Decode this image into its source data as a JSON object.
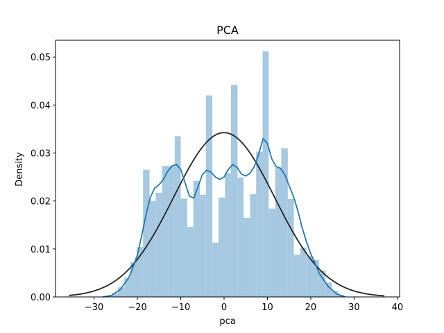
{
  "chart_data": {
    "type": "bar",
    "title": "PCA",
    "xlabel": "pca",
    "ylabel": "Density",
    "xlim": [
      -38.9,
      40.5
    ],
    "ylim": [
      0,
      0.0535
    ],
    "xticks": [
      -30,
      -20,
      -10,
      0,
      10,
      20,
      30,
      40
    ],
    "xtick_labels": [
      "−30",
      "−20",
      "−10",
      "0",
      "10",
      "20",
      "30",
      "40"
    ],
    "yticks": [
      0,
      0.01,
      0.02,
      0.03,
      0.04,
      0.05
    ],
    "ytick_labels": [
      "0.00",
      "0.01",
      "0.02",
      "0.03",
      "0.04",
      "0.05"
    ],
    "grid": false,
    "colors": {
      "hist": "#a6c8e0",
      "kde": "#1f77b4",
      "norm": "#222222"
    },
    "histogram": {
      "bins": [
        {
          "x0": -27.4,
          "x1": -25.9,
          "density": 0.0002
        },
        {
          "x0": -25.9,
          "x1": -24.5,
          "density": 0.0008
        },
        {
          "x0": -24.5,
          "x1": -23.0,
          "density": 0.002
        },
        {
          "x0": -23.0,
          "x1": -21.6,
          "density": 0.004
        },
        {
          "x0": -21.6,
          "x1": -20.1,
          "density": 0.0073
        },
        {
          "x0": -20.1,
          "x1": -18.7,
          "density": 0.0104
        },
        {
          "x0": -18.7,
          "x1": -17.2,
          "density": 0.0265
        },
        {
          "x0": -17.2,
          "x1": -15.8,
          "density": 0.02
        },
        {
          "x0": -15.8,
          "x1": -14.3,
          "density": 0.0217
        },
        {
          "x0": -14.3,
          "x1": -12.9,
          "density": 0.0273
        },
        {
          "x0": -12.9,
          "x1": -11.4,
          "density": 0.0273
        },
        {
          "x0": -11.4,
          "x1": -10.0,
          "density": 0.0335
        },
        {
          "x0": -10.0,
          "x1": -8.5,
          "density": 0.0205
        },
        {
          "x0": -8.5,
          "x1": -7.1,
          "density": 0.0146
        },
        {
          "x0": -7.1,
          "x1": -5.6,
          "density": 0.0242
        },
        {
          "x0": -5.6,
          "x1": -4.2,
          "density": 0.0213
        },
        {
          "x0": -4.2,
          "x1": -2.7,
          "density": 0.042
        },
        {
          "x0": -2.7,
          "x1": -1.3,
          "density": 0.0113
        },
        {
          "x0": -1.3,
          "x1": 0.2,
          "density": 0.0207
        },
        {
          "x0": 0.2,
          "x1": 1.6,
          "density": 0.0258
        },
        {
          "x0": 1.6,
          "x1": 3.1,
          "density": 0.0442
        },
        {
          "x0": 3.1,
          "x1": 4.5,
          "density": 0.0249
        },
        {
          "x0": 4.5,
          "x1": 6.0,
          "density": 0.0165
        },
        {
          "x0": 6.0,
          "x1": 7.4,
          "density": 0.0214
        },
        {
          "x0": 7.4,
          "x1": 8.9,
          "density": 0.0303
        },
        {
          "x0": 8.9,
          "x1": 10.3,
          "density": 0.0512
        },
        {
          "x0": 10.3,
          "x1": 11.8,
          "density": 0.0184
        },
        {
          "x0": 11.8,
          "x1": 13.2,
          "density": 0.027
        },
        {
          "x0": 13.2,
          "x1": 14.7,
          "density": 0.031
        },
        {
          "x0": 14.7,
          "x1": 16.1,
          "density": 0.0204
        },
        {
          "x0": 16.1,
          "x1": 17.6,
          "density": 0.0088
        },
        {
          "x0": 17.6,
          "x1": 19.0,
          "density": 0.0103
        },
        {
          "x0": 19.0,
          "x1": 20.5,
          "density": 0.0085
        },
        {
          "x0": 20.5,
          "x1": 21.9,
          "density": 0.0077
        },
        {
          "x0": 21.9,
          "x1": 23.4,
          "density": 0.0055
        },
        {
          "x0": 23.4,
          "x1": 24.8,
          "density": 0.003
        },
        {
          "x0": 24.8,
          "x1": 26.3,
          "density": 0.0012
        },
        {
          "x0": 26.3,
          "x1": 27.7,
          "density": 0.0004
        }
      ]
    },
    "kde": {
      "x": [
        -28,
        -26,
        -24,
        -22,
        -21,
        -20,
        -19,
        -18,
        -17,
        -16,
        -15,
        -14,
        -13,
        -12,
        -11,
        -10,
        -9,
        -8,
        -7,
        -6,
        -5,
        -4,
        -3,
        -2,
        -1,
        0,
        1,
        2,
        3,
        4,
        5,
        6,
        7,
        8,
        9,
        10,
        11,
        12,
        13,
        14,
        15,
        16,
        17,
        18,
        19,
        20,
        21,
        22,
        24,
        26,
        28
      ],
      "y": [
        0.0,
        0.0003,
        0.0015,
        0.004,
        0.0062,
        0.0088,
        0.0128,
        0.0172,
        0.0208,
        0.0227,
        0.0234,
        0.0245,
        0.0262,
        0.0273,
        0.0276,
        0.0266,
        0.0238,
        0.021,
        0.0206,
        0.023,
        0.0255,
        0.0264,
        0.026,
        0.025,
        0.0245,
        0.025,
        0.0266,
        0.0276,
        0.027,
        0.0256,
        0.0252,
        0.0258,
        0.0272,
        0.0298,
        0.033,
        0.032,
        0.0288,
        0.0272,
        0.0268,
        0.0255,
        0.0232,
        0.021,
        0.018,
        0.0145,
        0.0115,
        0.009,
        0.007,
        0.0048,
        0.0022,
        0.0006,
        0.0
      ]
    },
    "normal_fit": {
      "mean": 0.0,
      "std": 11.65,
      "x_range": [
        -35.8,
        37.0
      ]
    }
  }
}
